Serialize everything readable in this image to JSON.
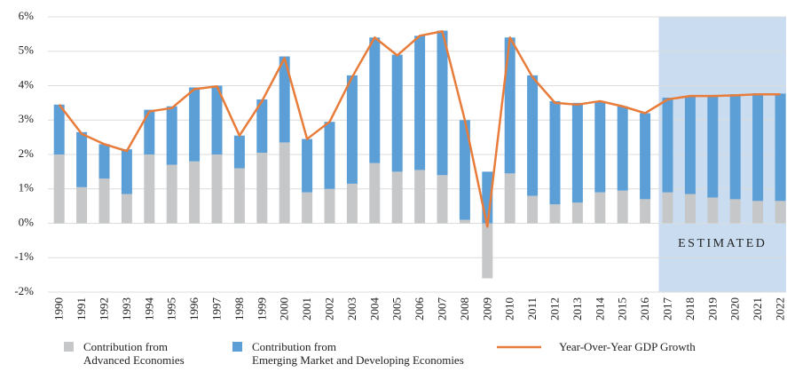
{
  "chart_data": {
    "type": "bar-line",
    "categories": [
      "1990",
      "1991",
      "1992",
      "1993",
      "1994",
      "1995",
      "1996",
      "1997",
      "1998",
      "1999",
      "2000",
      "2001",
      "2002",
      "2003",
      "2004",
      "2005",
      "2006",
      "2007",
      "2008",
      "2009",
      "2010",
      "2011",
      "2012",
      "2013",
      "2014",
      "2015",
      "2016",
      "2017",
      "2018",
      "2019",
      "2020",
      "2021",
      "2022"
    ],
    "series": [
      {
        "name": "Contribution from\nAdvanced Economies",
        "color": "#c6c7c9",
        "kind": "bar",
        "values": [
          2.0,
          1.05,
          1.3,
          0.85,
          2.0,
          1.7,
          1.8,
          2.0,
          1.6,
          2.05,
          2.35,
          0.9,
          1.0,
          1.15,
          1.75,
          1.5,
          1.55,
          1.4,
          0.1,
          -1.6,
          1.45,
          0.8,
          0.55,
          0.6,
          0.9,
          0.95,
          0.7,
          0.9,
          0.85,
          0.75,
          0.7,
          0.65,
          0.65
        ]
      },
      {
        "name": "Contribution from\nEmerging Market and Developing Economies",
        "color": "#5b9fd6",
        "kind": "bar",
        "values": [
          1.45,
          1.6,
          1.0,
          1.3,
          1.3,
          1.7,
          2.15,
          2.0,
          0.95,
          1.55,
          2.5,
          1.55,
          1.95,
          3.15,
          3.65,
          3.4,
          3.9,
          4.2,
          2.9,
          1.5,
          3.95,
          3.5,
          3.0,
          2.9,
          2.65,
          2.45,
          2.5,
          2.75,
          2.85,
          2.95,
          3.05,
          3.13,
          3.12
        ]
      },
      {
        "name": "Year-Over-Year GDP Growth",
        "color": "#e87c3a",
        "kind": "line",
        "values": [
          3.45,
          2.6,
          2.3,
          2.1,
          3.25,
          3.35,
          3.9,
          3.98,
          2.55,
          3.55,
          4.8,
          2.45,
          2.95,
          4.25,
          5.4,
          4.88,
          5.45,
          5.58,
          3.0,
          -0.1,
          5.4,
          4.25,
          3.5,
          3.45,
          3.55,
          3.4,
          3.2,
          3.6,
          3.7,
          3.7,
          3.72,
          3.75,
          3.75
        ]
      }
    ],
    "ylim": [
      -2,
      6
    ],
    "yticks": [
      {
        "value": -2,
        "label": "-2%"
      },
      {
        "value": -1,
        "label": "-1%"
      },
      {
        "value": 0,
        "label": "0%"
      },
      {
        "value": 1,
        "label": "1%"
      },
      {
        "value": 2,
        "label": "2%"
      },
      {
        "value": 3,
        "label": "3%"
      },
      {
        "value": 4,
        "label": "4%"
      },
      {
        "value": 5,
        "label": "5%"
      },
      {
        "value": 6,
        "label": "6%"
      }
    ],
    "grid": true,
    "shaded_region": {
      "start": "2017",
      "end": "2022",
      "label": "ESTIMATED",
      "color": "#c9dcf0"
    }
  }
}
